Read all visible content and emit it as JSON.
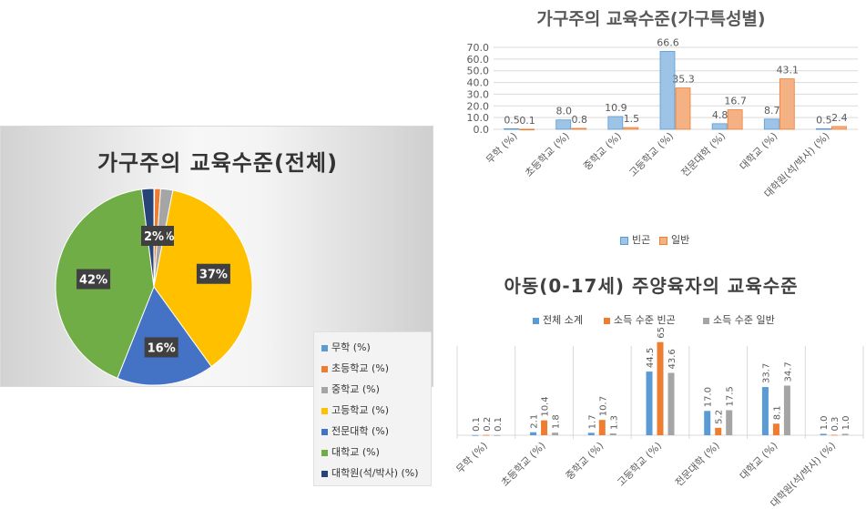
{
  "chart_data": [
    {
      "type": "pie",
      "title": "가구주의 교육수준(전체)",
      "legend_position": "right",
      "categories": [
        "무학 (%)",
        "초등학교 (%)",
        "중학교 (%)",
        "고등학교 (%)",
        "전문대학 (%)",
        "대학교 (%)",
        "대학원(석/박사) (%)"
      ],
      "values": [
        0.1,
        1,
        2,
        37,
        16,
        42,
        2
      ],
      "data_labels": [
        "",
        "",
        "%",
        "37%",
        "16%",
        "42%",
        "2%"
      ],
      "colors": [
        "#5B9BD5",
        "#ED7D31",
        "#A5A5A5",
        "#FFC000",
        "#4472C4",
        "#70AD47",
        "#264478"
      ]
    },
    {
      "type": "bar",
      "title": "가구주의 교육수준(가구특성별)",
      "categories": [
        "무학 (%)",
        "초등학교 (%)",
        "중학교 (%)",
        "고등학교 (%)",
        "전문대학 (%)",
        "대학교 (%)",
        "대학원(석/박사) (%)"
      ],
      "series": [
        {
          "name": "빈곤",
          "values": [
            0.5,
            8.0,
            10.9,
            66.6,
            4.8,
            8.7,
            0.5
          ],
          "color": "#9DC3E6"
        },
        {
          "name": "일반",
          "values": [
            0.1,
            0.8,
            1.5,
            35.3,
            16.7,
            43.1,
            2.4
          ],
          "color": "#F4B183"
        }
      ],
      "ylim": [
        0,
        70
      ],
      "yticks": [
        "0.0",
        "10.0",
        "20.0",
        "30.0",
        "40.0",
        "50.0",
        "60.0",
        "70.0"
      ],
      "grid": true,
      "legend_position": "bottom"
    },
    {
      "type": "bar",
      "title": "아동(0-17세) 주양육자의 교육수준",
      "categories": [
        "무학 (%)",
        "초등학교 (%)",
        "중학교 (%)",
        "고등학교 (%)",
        "전문대학 (%)",
        "대학교 (%)",
        "대학원(석/박사) (%)"
      ],
      "series": [
        {
          "name": "전체 소계",
          "values": [
            0.1,
            2.1,
            1.7,
            44.5,
            17.0,
            33.7,
            1.0
          ],
          "color": "#5B9BD5"
        },
        {
          "name": "소득 수준 빈곤",
          "values": [
            0.2,
            10.4,
            10.7,
            65.1,
            5.2,
            8.1,
            0.3
          ],
          "color": "#ED7D31"
        },
        {
          "name": "소득 수준 일반",
          "values": [
            0.1,
            1.8,
            1.3,
            43.6,
            17.5,
            34.7,
            1.0
          ],
          "color": "#A5A5A5"
        }
      ],
      "ylim": [
        0,
        70
      ],
      "grid": false,
      "legend_position": "top"
    }
  ]
}
